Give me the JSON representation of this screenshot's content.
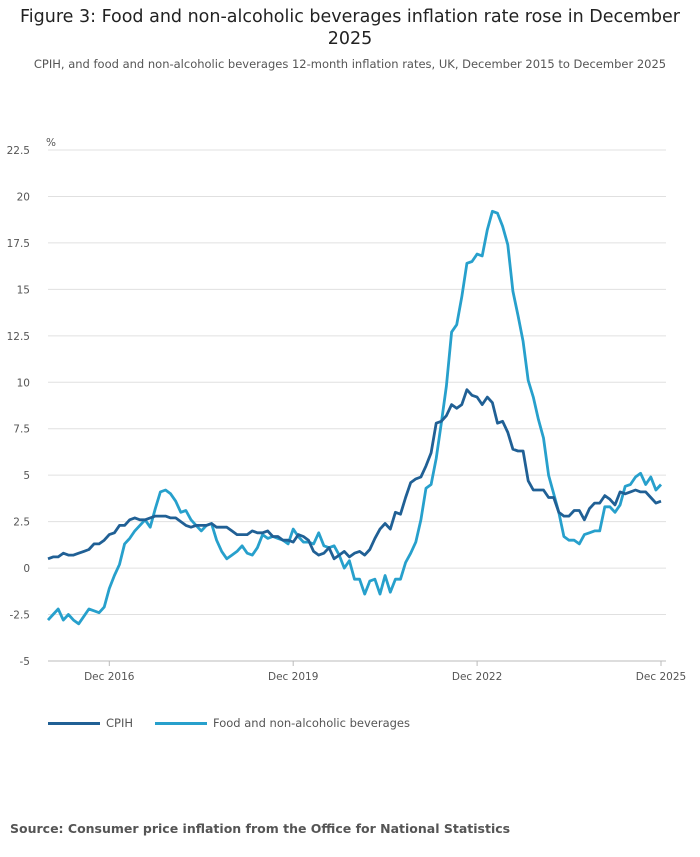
{
  "title": "Figure 3: Food and non-alcoholic beverages inflation rate rose in December 2025",
  "subtitle": "CPIH, and food and non-alcoholic beverages 12-month inflation rates, UK, December 2015 to December 2025",
  "source": "Source: Consumer price inflation from the Office for National Statistics",
  "colors": {
    "cpih": "#206095",
    "food": "#27a0cc",
    "grid": "#e0e0e0"
  },
  "chart_data": {
    "type": "line",
    "title": "Figure 3: Food and non-alcoholic beverages inflation rate rose in December 2025",
    "ylabel": "%",
    "xlabel": "",
    "x_start": "Dec 2015",
    "x_end": "Dec 2025",
    "x_frequency": "monthly",
    "ylim": [
      -5,
      22.5
    ],
    "yticks": [
      "22.5",
      "20",
      "17.5",
      "15",
      "12.5",
      "10",
      "7.5",
      "5",
      "2.5",
      "0",
      "-2.5",
      "-5"
    ],
    "xticks": [
      {
        "label": "Dec 2016",
        "index": 12
      },
      {
        "label": "Dec 2019",
        "index": 48
      },
      {
        "label": "Dec 2022",
        "index": 84
      },
      {
        "label": "Dec 2025",
        "index": 120
      }
    ],
    "grid": true,
    "legend_position": "bottom-left",
    "series": [
      {
        "name": "CPIH",
        "color": "#206095",
        "values": [
          0.5,
          0.6,
          0.6,
          0.8,
          0.7,
          0.7,
          0.8,
          0.9,
          1.0,
          1.3,
          1.3,
          1.5,
          1.8,
          1.9,
          2.3,
          2.3,
          2.6,
          2.7,
          2.6,
          2.6,
          2.7,
          2.8,
          2.8,
          2.8,
          2.7,
          2.7,
          2.5,
          2.3,
          2.2,
          2.3,
          2.3,
          2.3,
          2.4,
          2.2,
          2.2,
          2.2,
          2.0,
          1.8,
          1.8,
          1.8,
          2.0,
          1.9,
          1.9,
          2.0,
          1.7,
          1.7,
          1.5,
          1.5,
          1.4,
          1.8,
          1.7,
          1.5,
          0.9,
          0.7,
          0.8,
          1.1,
          0.5,
          0.7,
          0.9,
          0.6,
          0.8,
          0.9,
          0.7,
          1.0,
          1.6,
          2.1,
          2.4,
          2.1,
          3.0,
          2.9,
          3.8,
          4.6,
          4.8,
          4.9,
          5.5,
          6.2,
          7.8,
          7.9,
          8.2,
          8.8,
          8.6,
          8.8,
          9.6,
          9.3,
          9.2,
          8.8,
          9.2,
          8.9,
          7.8,
          7.9,
          7.3,
          6.4,
          6.3,
          6.3,
          4.7,
          4.2,
          4.2,
          4.2,
          3.8,
          3.8,
          3.0,
          2.8,
          2.8,
          3.1,
          3.1,
          2.6,
          3.2,
          3.5,
          3.5,
          3.9,
          3.7,
          3.4,
          4.1,
          4.0,
          4.1,
          4.2,
          4.1,
          4.1,
          3.8,
          3.5,
          3.6
        ]
      },
      {
        "name": "Food and non-alcoholic beverages",
        "color": "#27a0cc",
        "values": [
          -2.8,
          -2.5,
          -2.2,
          -2.8,
          -2.5,
          -2.8,
          -3.0,
          -2.6,
          -2.2,
          -2.3,
          -2.4,
          -2.1,
          -1.1,
          -0.4,
          0.2,
          1.3,
          1.6,
          2.0,
          2.3,
          2.6,
          2.2,
          3.2,
          4.1,
          4.2,
          4.0,
          3.6,
          3.0,
          3.1,
          2.6,
          2.3,
          2.0,
          2.3,
          2.4,
          1.5,
          0.9,
          0.5,
          0.7,
          0.9,
          1.2,
          0.8,
          0.7,
          1.1,
          1.8,
          1.6,
          1.7,
          1.6,
          1.5,
          1.3,
          2.1,
          1.7,
          1.4,
          1.4,
          1.3,
          1.9,
          1.2,
          1.1,
          1.2,
          0.7,
          0.0,
          0.4,
          -0.6,
          -0.6,
          -1.4,
          -0.7,
          -0.6,
          -1.4,
          -0.4,
          -1.3,
          -0.6,
          -0.6,
          0.3,
          0.8,
          1.4,
          2.6,
          4.3,
          4.5,
          5.9,
          7.8,
          9.8,
          12.7,
          13.1,
          14.6,
          16.4,
          16.5,
          16.9,
          16.8,
          18.2,
          19.2,
          19.1,
          18.4,
          17.4,
          14.9,
          13.6,
          12.2,
          10.1,
          9.2,
          8.0,
          7.0,
          5.0,
          4.0,
          3.0,
          1.7,
          1.5,
          1.5,
          1.3,
          1.8,
          1.9,
          2.0,
          2.0,
          3.3,
          3.3,
          3.0,
          3.4,
          4.4,
          4.5,
          4.9,
          5.1,
          4.5,
          4.9,
          4.2,
          4.5
        ]
      }
    ]
  }
}
